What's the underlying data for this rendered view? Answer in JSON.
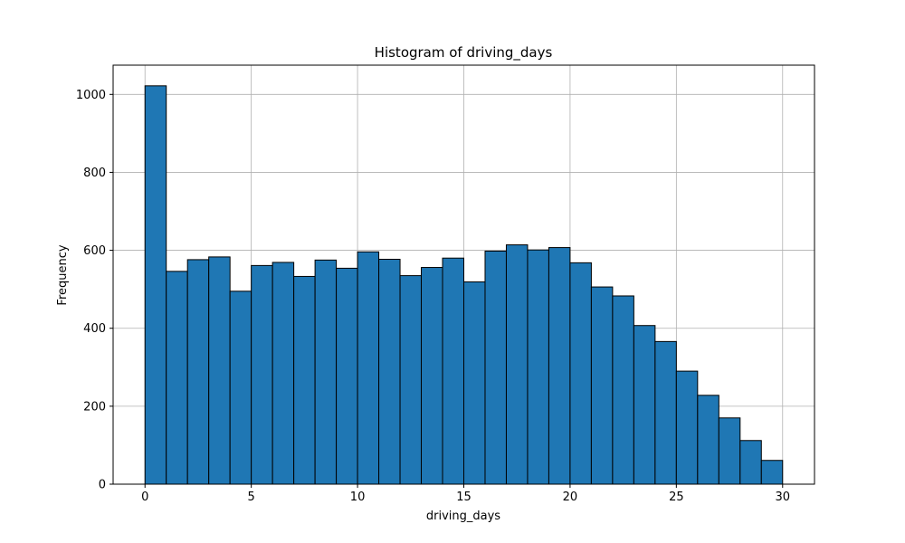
{
  "chart_data": {
    "type": "bar",
    "title": "Histogram of driving_days",
    "xlabel": "driving_days",
    "ylabel": "Frequency",
    "xlim": [
      -1.5,
      31.5
    ],
    "ylim": [
      0,
      1075
    ],
    "xticks": [
      0,
      5,
      10,
      15,
      20,
      25,
      30
    ],
    "yticks": [
      0,
      200,
      400,
      600,
      800,
      1000
    ],
    "grid": true,
    "bar_color": "#1f77b4",
    "edge_color": "#000000",
    "bins": [
      {
        "start": 0,
        "end": 1,
        "value": 1022
      },
      {
        "start": 1,
        "end": 2,
        "value": 546
      },
      {
        "start": 2,
        "end": 3,
        "value": 576
      },
      {
        "start": 3,
        "end": 4,
        "value": 583
      },
      {
        "start": 4,
        "end": 5,
        "value": 495
      },
      {
        "start": 5,
        "end": 6,
        "value": 561
      },
      {
        "start": 6,
        "end": 7,
        "value": 569
      },
      {
        "start": 7,
        "end": 8,
        "value": 533
      },
      {
        "start": 8,
        "end": 9,
        "value": 575
      },
      {
        "start": 9,
        "end": 10,
        "value": 554
      },
      {
        "start": 10,
        "end": 11,
        "value": 596
      },
      {
        "start": 11,
        "end": 12,
        "value": 577
      },
      {
        "start": 12,
        "end": 13,
        "value": 535
      },
      {
        "start": 13,
        "end": 14,
        "value": 556
      },
      {
        "start": 14,
        "end": 15,
        "value": 580
      },
      {
        "start": 15,
        "end": 16,
        "value": 519
      },
      {
        "start": 16,
        "end": 17,
        "value": 598
      },
      {
        "start": 17,
        "end": 18,
        "value": 614
      },
      {
        "start": 18,
        "end": 19,
        "value": 601
      },
      {
        "start": 19,
        "end": 20,
        "value": 607
      },
      {
        "start": 20,
        "end": 21,
        "value": 568
      },
      {
        "start": 21,
        "end": 22,
        "value": 506
      },
      {
        "start": 22,
        "end": 23,
        "value": 483
      },
      {
        "start": 23,
        "end": 24,
        "value": 407
      },
      {
        "start": 24,
        "end": 25,
        "value": 366
      },
      {
        "start": 25,
        "end": 26,
        "value": 290
      },
      {
        "start": 26,
        "end": 27,
        "value": 228
      },
      {
        "start": 27,
        "end": 28,
        "value": 170
      },
      {
        "start": 28,
        "end": 29,
        "value": 112
      },
      {
        "start": 29,
        "end": 30,
        "value": 61
      }
    ]
  }
}
